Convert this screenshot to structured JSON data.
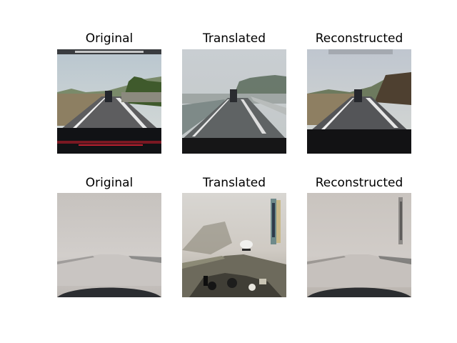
{
  "rows": [
    {
      "condition": "clear",
      "panels": [
        {
          "title": "Original"
        },
        {
          "title": "Translated"
        },
        {
          "title": "Reconstructed"
        }
      ]
    },
    {
      "condition": "fog",
      "panels": [
        {
          "title": "Original"
        },
        {
          "title": "Translated"
        },
        {
          "title": "Reconstructed"
        }
      ]
    }
  ]
}
